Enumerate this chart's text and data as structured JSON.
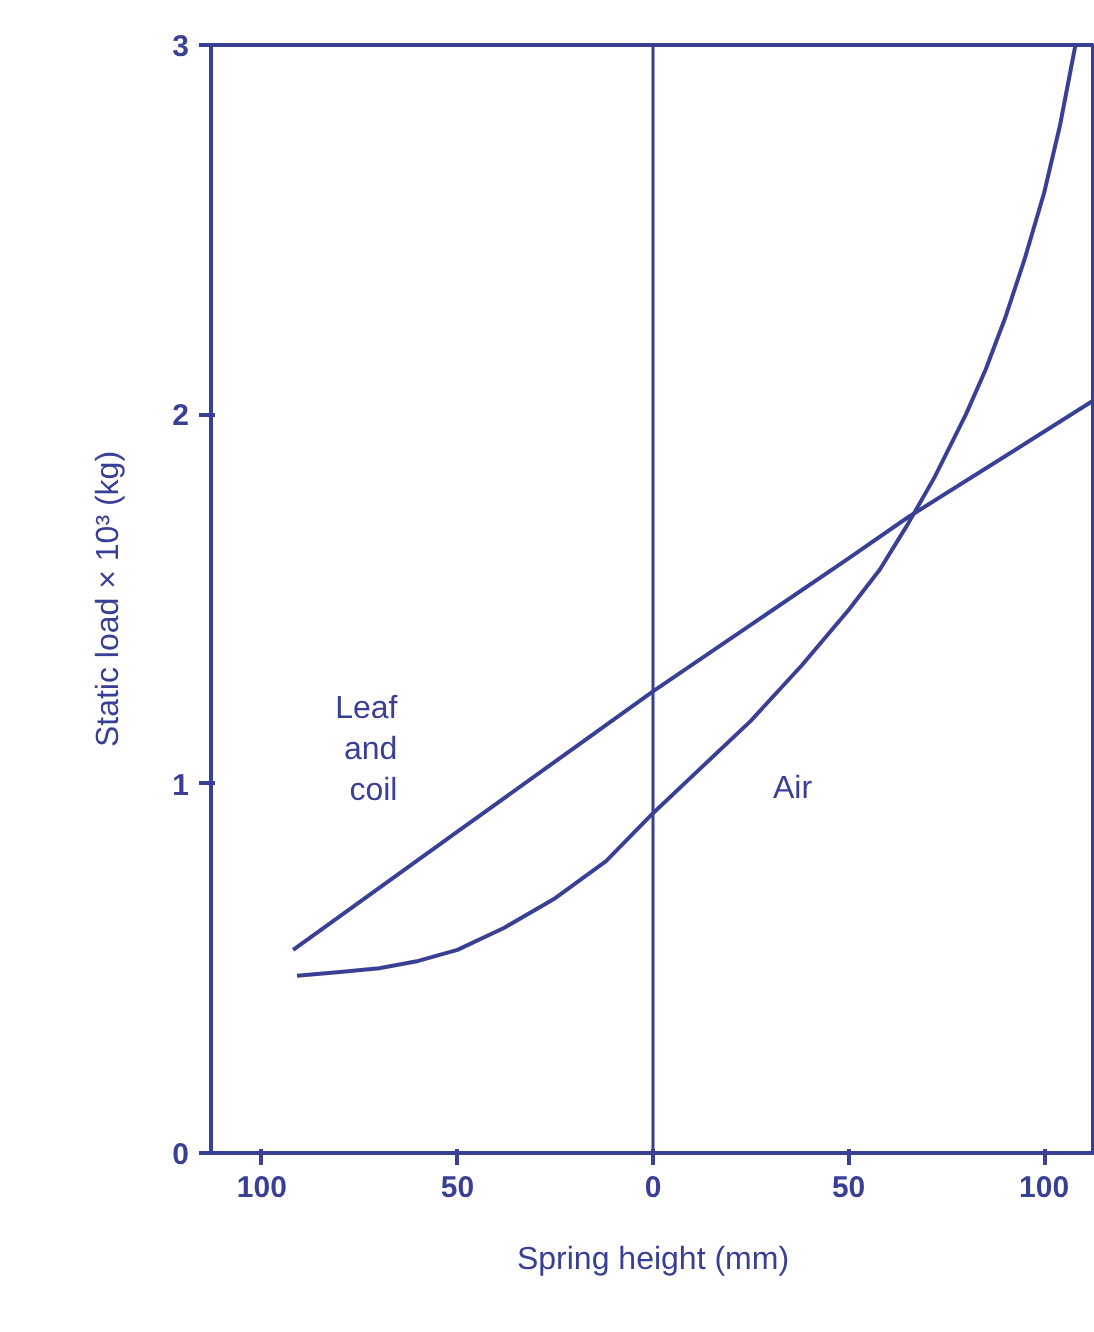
{
  "chart_data": {
    "type": "line",
    "xlabel": "Spring height (mm)",
    "ylabel": "Static load × 10³ (kg)",
    "xlim": [
      -113,
      113
    ],
    "ylim": [
      0,
      3
    ],
    "xticks": [
      {
        "value": -100,
        "label": "100"
      },
      {
        "value": -50,
        "label": "50"
      },
      0,
      50,
      100
    ],
    "yticks": [
      0,
      1,
      2,
      3
    ],
    "grid": false,
    "marker": "none",
    "line_style": "solid",
    "ref_lines": [
      {
        "axis": "x",
        "value": 0,
        "color": "#3a3f96"
      }
    ],
    "series": [
      {
        "name": "Leaf and coil",
        "color": "#3a3f96",
        "x": [
          -92,
          -50,
          0,
          50,
          65,
          113
        ],
        "values": [
          0.55,
          0.87,
          1.25,
          1.61,
          1.72,
          2.04
        ]
      },
      {
        "name": "Air",
        "color": "#3a3f96",
        "x": [
          -91,
          -80,
          -70,
          -60,
          -50,
          -38,
          -25,
          -12,
          0,
          12,
          25,
          38,
          50,
          58,
          65,
          72,
          80,
          85,
          90,
          95,
          100,
          104,
          108
        ],
        "values": [
          0.48,
          0.49,
          0.5,
          0.52,
          0.55,
          0.61,
          0.69,
          0.79,
          0.92,
          1.04,
          1.17,
          1.32,
          1.47,
          1.58,
          1.7,
          1.83,
          2.0,
          2.12,
          2.26,
          2.42,
          2.6,
          2.78,
          3.0
        ]
      }
    ]
  }
}
